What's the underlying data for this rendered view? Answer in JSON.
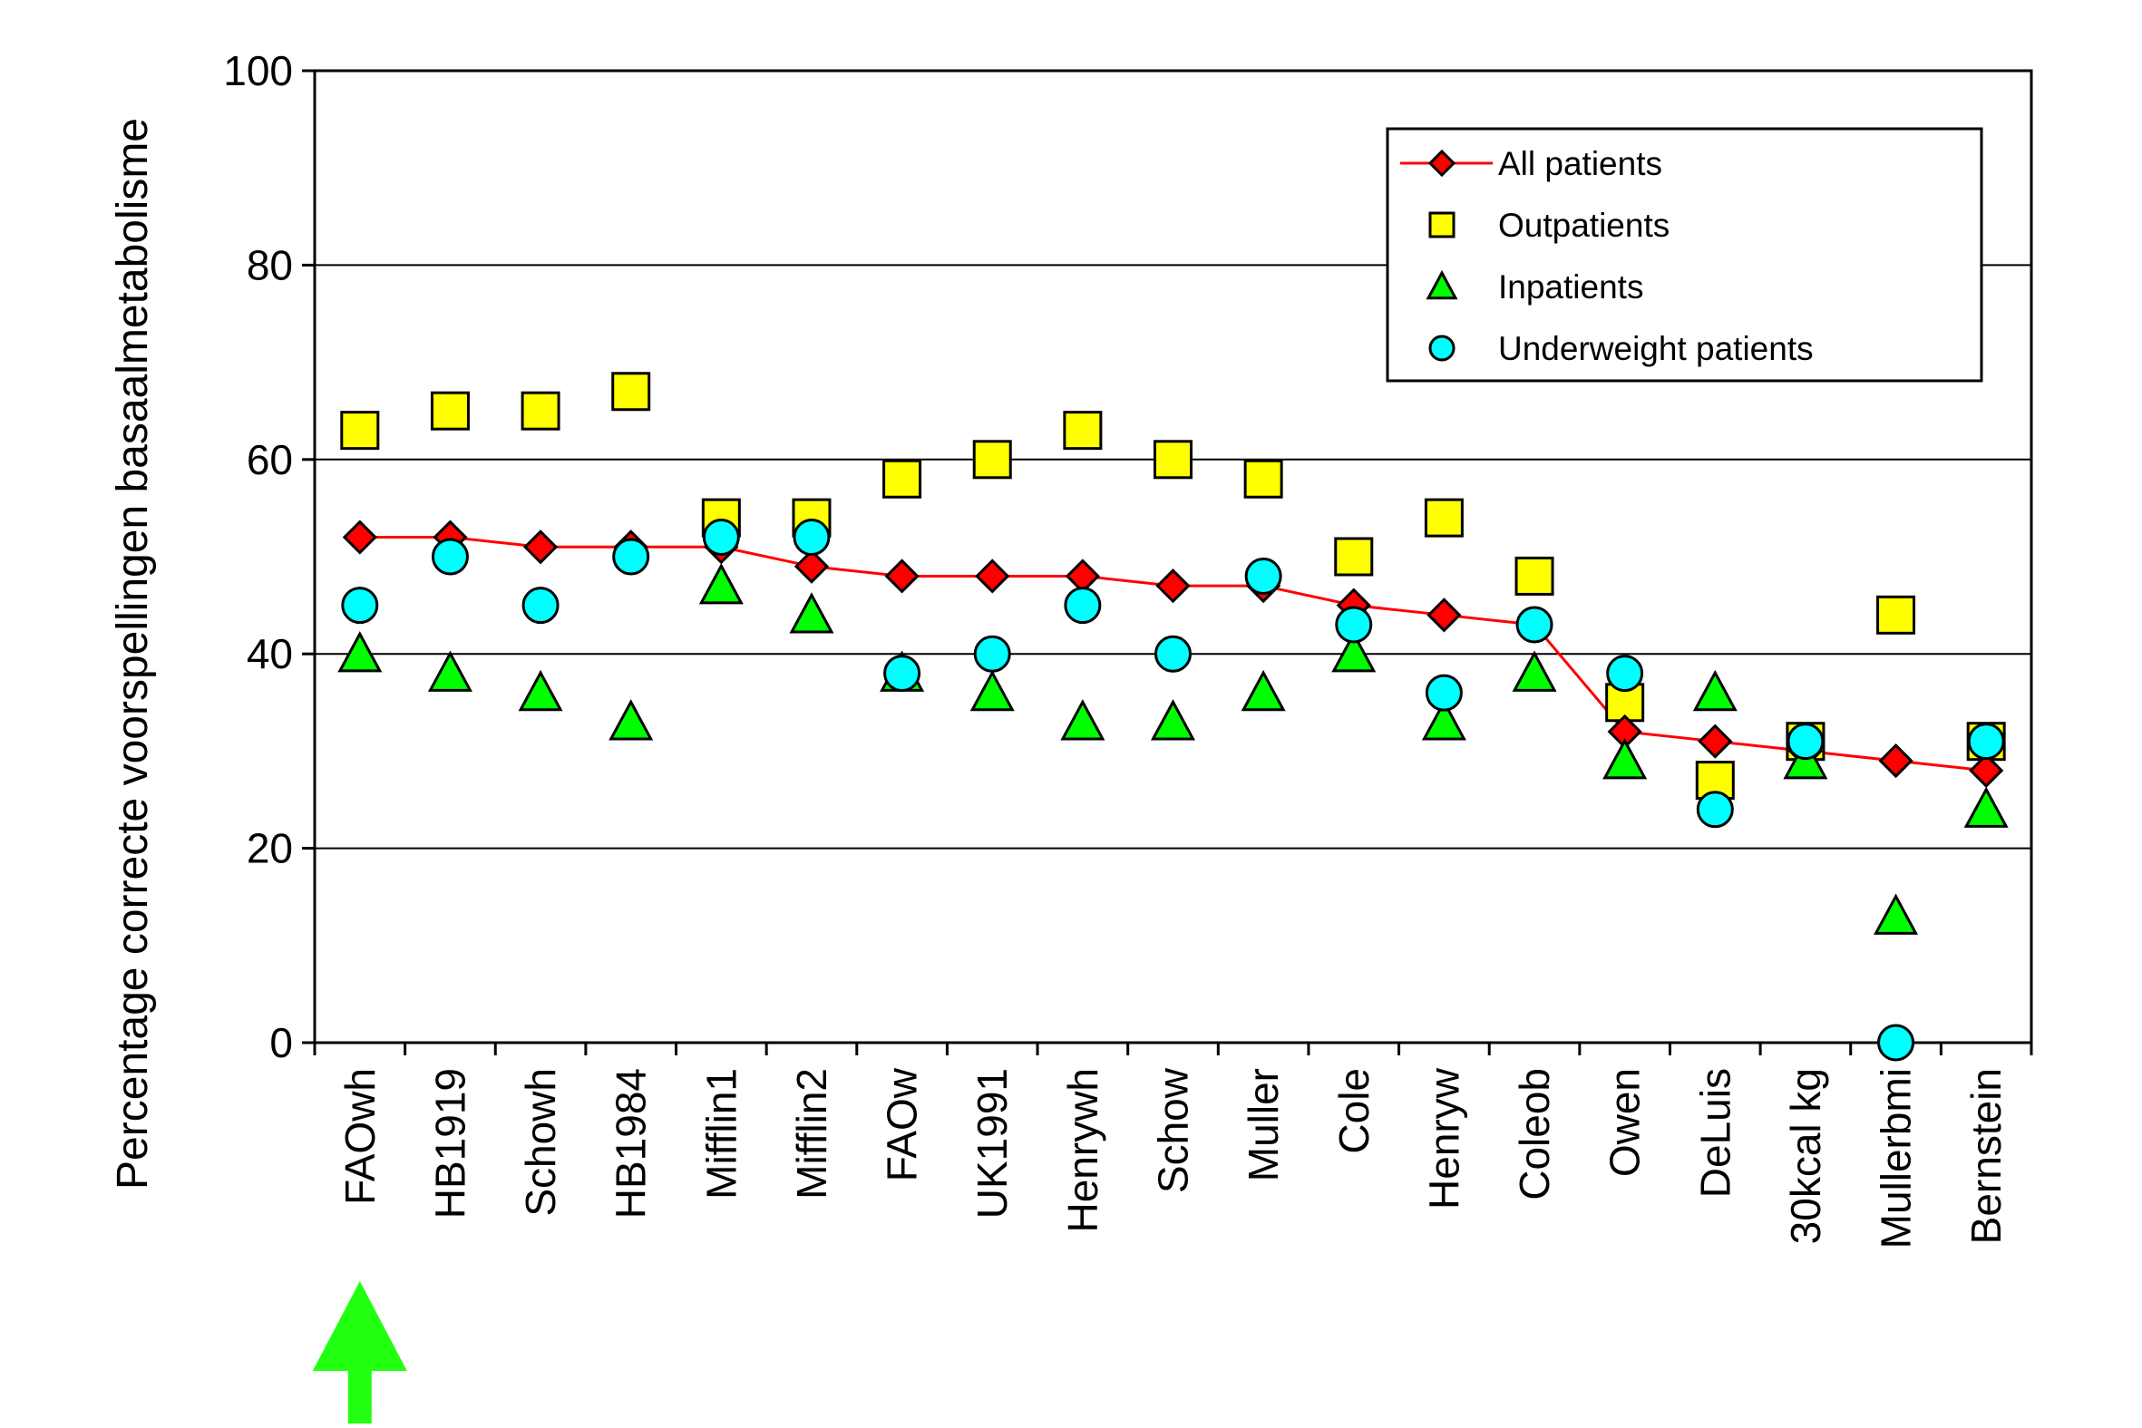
{
  "chart_data": {
    "type": "line",
    "title": "",
    "xlabel": "",
    "ylabel": "Percentage correcte voorspellingen basaalmetabolisme",
    "ylim": [
      0,
      100
    ],
    "yticks": [
      0,
      20,
      40,
      60,
      80,
      100
    ],
    "grid": true,
    "legend_position": "top-right",
    "categories": [
      "FAOwh",
      "HB1919",
      "Schowh",
      "HB1984",
      "Mifflin1",
      "Mifflin2",
      "FAOw",
      "UK1991",
      "Henrywh",
      "Schow",
      "Muller",
      "Cole",
      "Henryw",
      "Coleob",
      "Owen",
      "DeLuis",
      "30kcal kg",
      "Mullerbmi",
      "Bernstein"
    ],
    "series": [
      {
        "name": "All patients",
        "marker": "diamond",
        "line": true,
        "color": "#ff0000",
        "values": [
          52,
          52,
          51,
          51,
          51,
          49,
          48,
          48,
          48,
          47,
          47,
          45,
          44,
          43,
          32,
          31,
          30,
          29,
          28
        ]
      },
      {
        "name": "Outpatients",
        "marker": "square",
        "line": false,
        "color": "#ffff00",
        "values": [
          63,
          65,
          65,
          67,
          54,
          54,
          58,
          60,
          63,
          60,
          58,
          50,
          54,
          48,
          35,
          27,
          31,
          44,
          31
        ]
      },
      {
        "name": "Inpatients",
        "marker": "triangle",
        "line": false,
        "color": "#00ff00",
        "values": [
          40,
          38,
          36,
          33,
          47,
          44,
          38,
          36,
          33,
          33,
          36,
          40,
          33,
          38,
          29,
          36,
          29,
          13,
          24
        ]
      },
      {
        "name": "Underweight patients",
        "marker": "circle",
        "line": false,
        "color": "#00ffff",
        "values": [
          45,
          50,
          45,
          50,
          52,
          52,
          38,
          40,
          45,
          40,
          48,
          43,
          36,
          43,
          38,
          24,
          31,
          0,
          31
        ]
      }
    ],
    "highlight": {
      "category": "FAOwh",
      "marker": "arrow-up-icon",
      "color": "#22ff11"
    }
  }
}
